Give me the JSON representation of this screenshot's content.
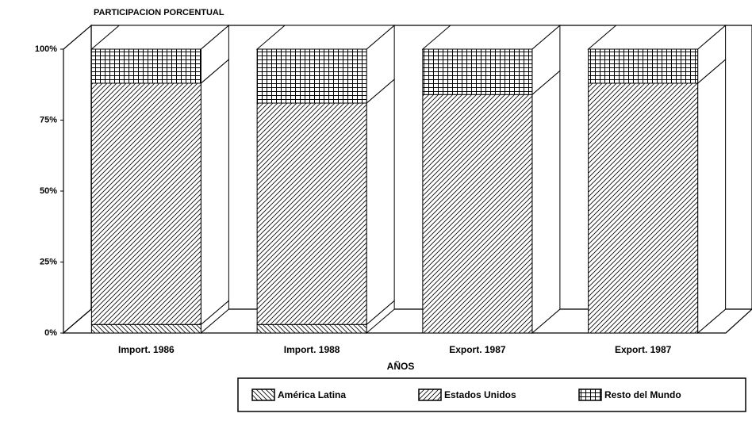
{
  "chart_data": {
    "type": "bar",
    "stacked": true,
    "three_d": true,
    "title": "PARTICIPACION PORCENTUAL",
    "xlabel": "AÑOS",
    "categories": [
      "Import. 1986",
      "Import. 1988",
      "Export. 1987",
      "Export. 1987"
    ],
    "series": [
      {
        "name": "América Latina",
        "color": "#000000",
        "pattern": "back-diagonal",
        "values": [
          3,
          3,
          0,
          0
        ]
      },
      {
        "name": "Estados Unidos",
        "color": "#000000",
        "pattern": "diagonal",
        "values": [
          85,
          78,
          84,
          88
        ]
      },
      {
        "name": "Resto del Mundo",
        "color": "#000000",
        "pattern": "grid",
        "values": [
          12,
          19,
          16,
          12
        ]
      }
    ],
    "ylim": [
      0,
      100
    ],
    "yticks": [
      {
        "value": 0,
        "label": "0%"
      },
      {
        "value": 25,
        "label": "25%"
      },
      {
        "value": 50,
        "label": "50%"
      },
      {
        "value": 75,
        "label": "75%"
      },
      {
        "value": 100,
        "label": "100%"
      }
    ],
    "grid": false,
    "legend": "bottom-right"
  }
}
